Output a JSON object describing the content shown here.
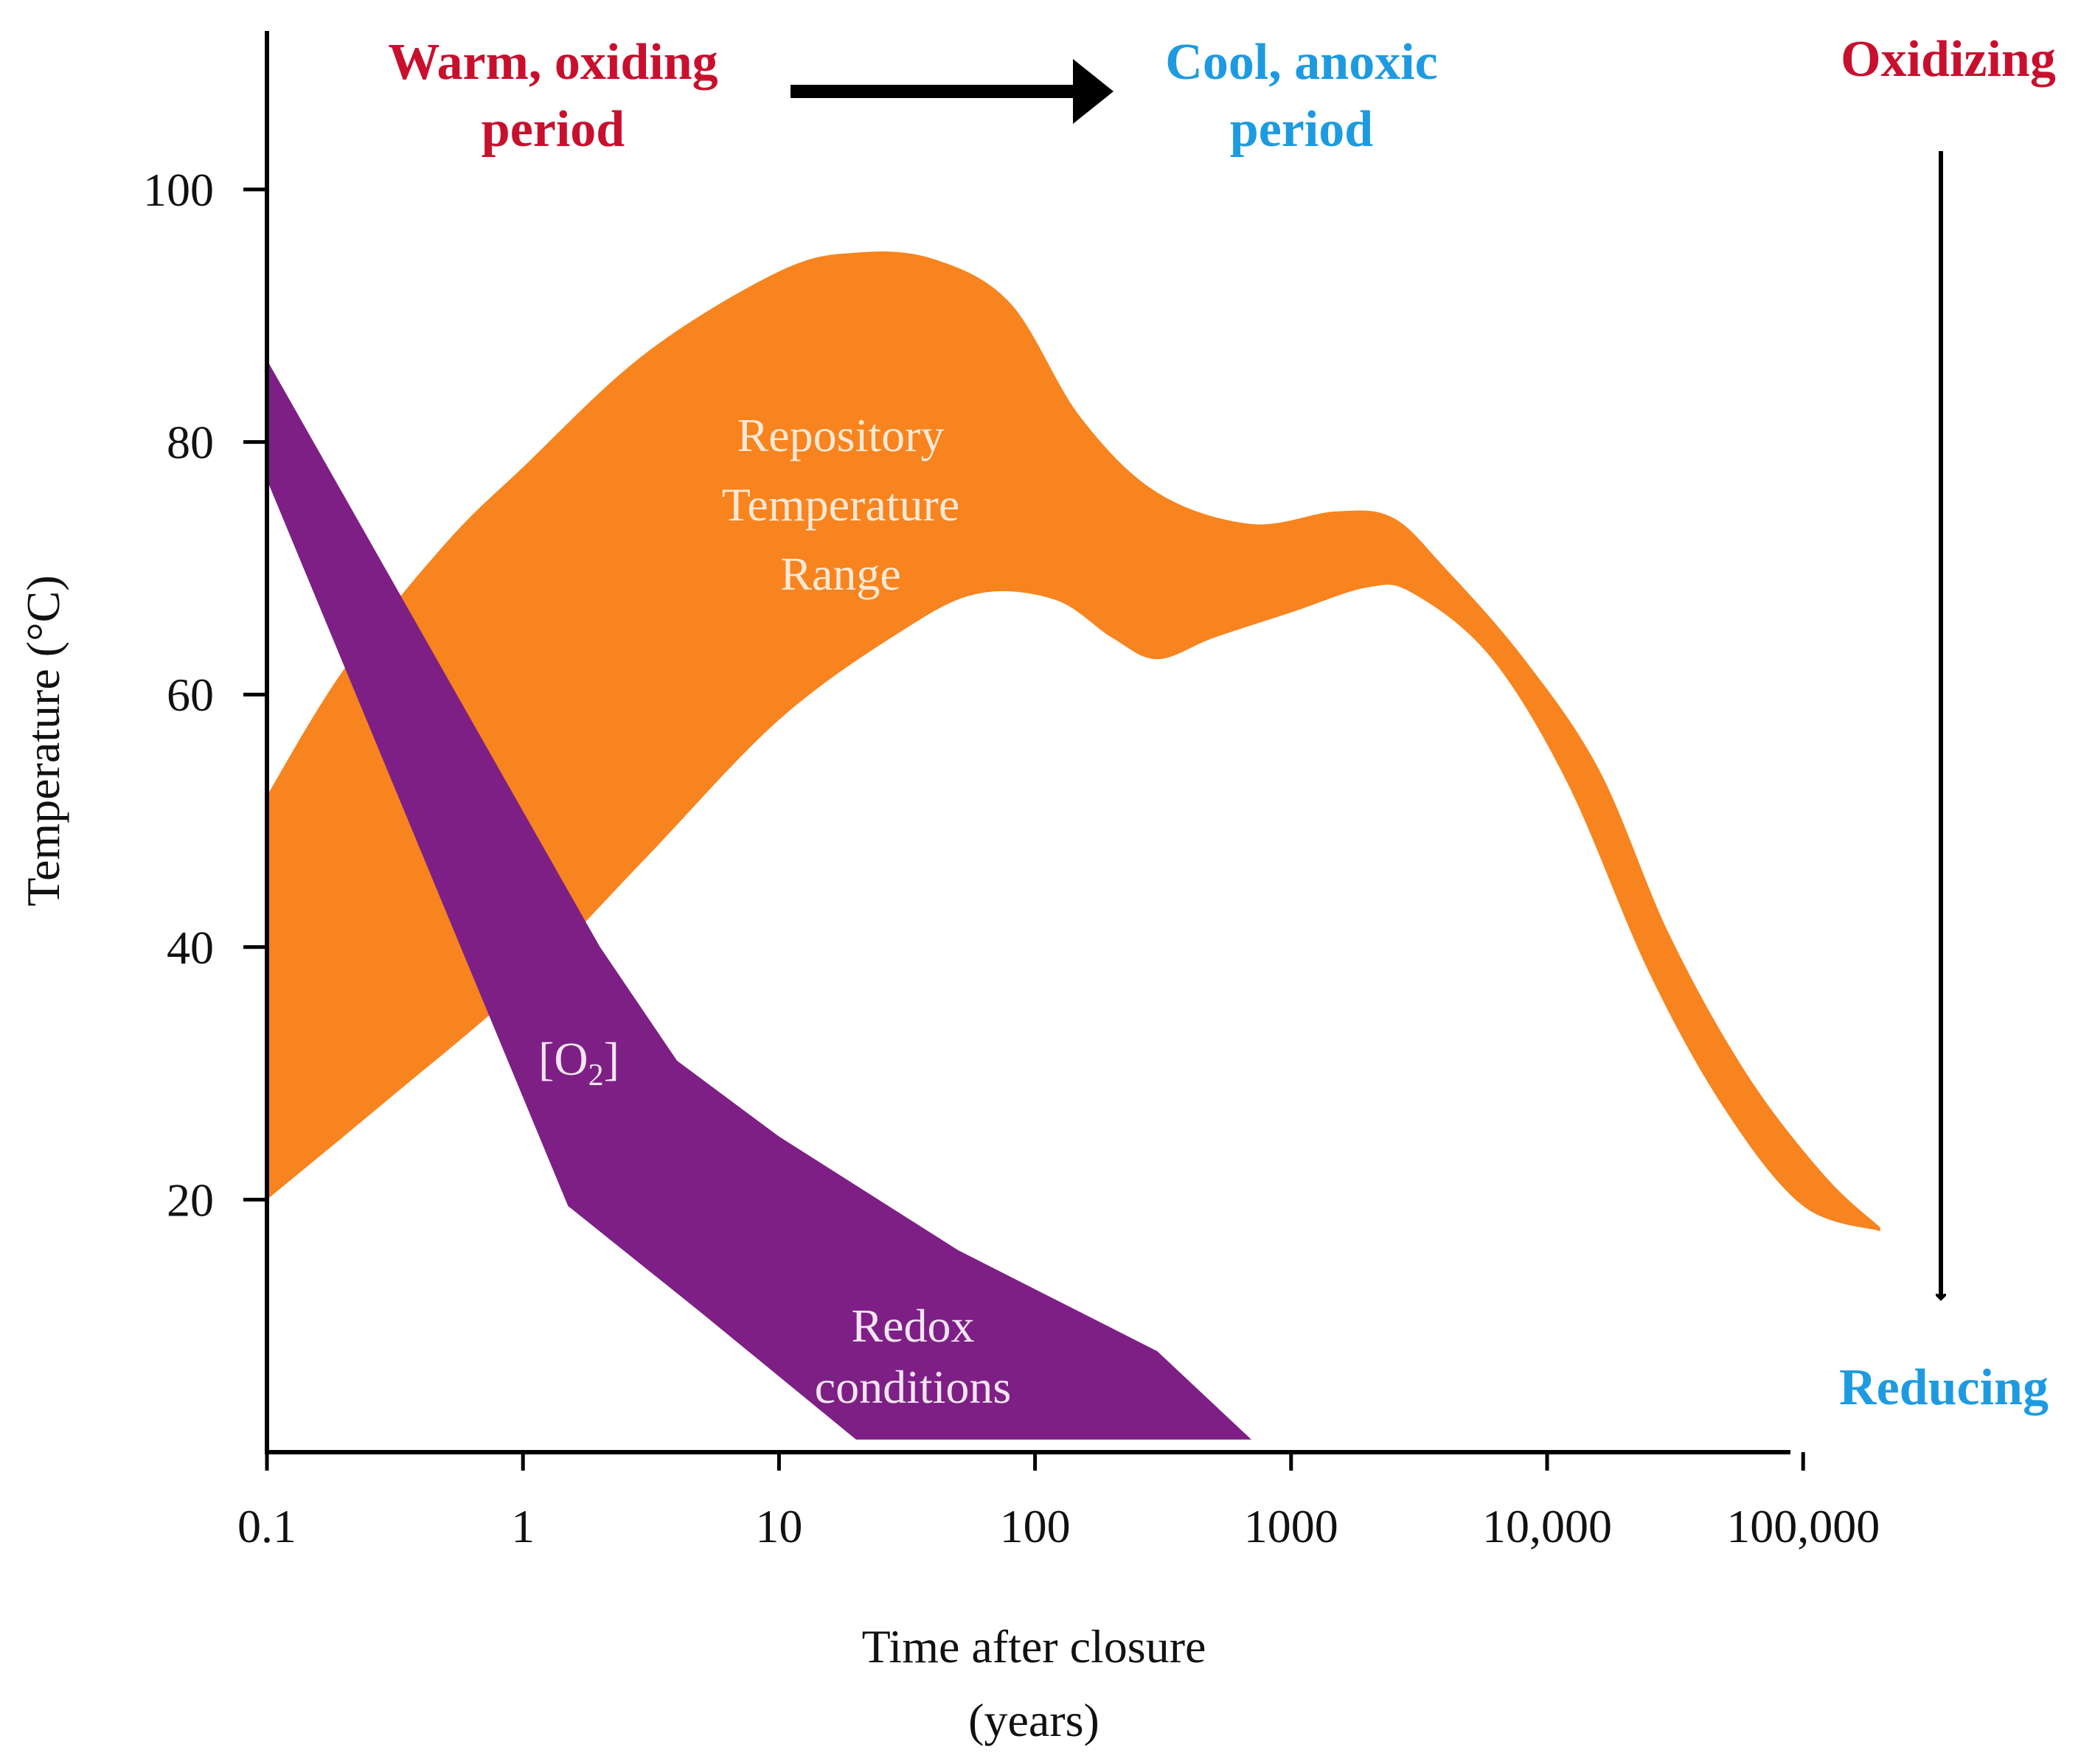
{
  "chart_data": {
    "type": "area",
    "xscale": "log",
    "xlim": [
      0.1,
      100000
    ],
    "ylim": [
      0,
      112
    ],
    "xlabel": [
      "Time after closure",
      "(years)"
    ],
    "ylabel": "Temperature (°C)",
    "x_ticks": [
      {
        "value": 0.1,
        "label": "0.1"
      },
      {
        "value": 1,
        "label": "1"
      },
      {
        "value": 10,
        "label": "10"
      },
      {
        "value": 100,
        "label": "100"
      },
      {
        "value": 1000,
        "label": "1000"
      },
      {
        "value": 10000,
        "label": "10,000"
      },
      {
        "value": 100000,
        "label": "100,000"
      }
    ],
    "y_ticks": [
      {
        "value": 20,
        "label": "20"
      },
      {
        "value": 40,
        "label": "40"
      },
      {
        "value": 60,
        "label": "60"
      },
      {
        "value": 80,
        "label": "80"
      },
      {
        "value": 100,
        "label": "100"
      }
    ],
    "series": [
      {
        "label_lines": [
          "Repository",
          "Temperature",
          "Range"
        ],
        "color": "#f7841f",
        "upper": [
          [
            0.1,
            52
          ],
          [
            0.2,
            62
          ],
          [
            0.5,
            72
          ],
          [
            1,
            78
          ],
          [
            3,
            87
          ],
          [
            10,
            93.5
          ],
          [
            20,
            95
          ],
          [
            40,
            94.5
          ],
          [
            80,
            91
          ],
          [
            150,
            82
          ],
          [
            300,
            76
          ],
          [
            700,
            73.5
          ],
          [
            1500,
            74.5
          ],
          [
            2500,
            74
          ],
          [
            4000,
            70
          ],
          [
            8000,
            63
          ],
          [
            16000,
            54
          ],
          [
            30000,
            41
          ],
          [
            60000,
            30
          ],
          [
            120000,
            22
          ],
          [
            200000,
            17.8
          ]
        ],
        "lower": [
          [
            0.1,
            20
          ],
          [
            0.3,
            28
          ],
          [
            1,
            37
          ],
          [
            3,
            47
          ],
          [
            10,
            58
          ],
          [
            30,
            65
          ],
          [
            60,
            68
          ],
          [
            120,
            67.5
          ],
          [
            200,
            64.5
          ],
          [
            300,
            62.8
          ],
          [
            500,
            64.5
          ],
          [
            1000,
            66.5
          ],
          [
            2000,
            68.5
          ],
          [
            3000,
            68
          ],
          [
            6000,
            63
          ],
          [
            12000,
            53
          ],
          [
            25000,
            38
          ],
          [
            50000,
            27
          ],
          [
            100000,
            19.5
          ],
          [
            200000,
            17.5
          ]
        ]
      },
      {
        "label": "[O2]",
        "label_lines": [
          "Redox",
          "conditions"
        ],
        "color": "#7e1f86",
        "upper": [
          [
            0.1,
            86.5
          ],
          [
            2,
            40
          ],
          [
            4,
            31
          ],
          [
            10,
            25
          ],
          [
            50,
            16
          ],
          [
            300,
            8
          ],
          [
            700,
            1
          ]
        ],
        "lower": [
          [
            0.1,
            77
          ],
          [
            1.5,
            19.5
          ],
          [
            5,
            11
          ],
          [
            20,
            1
          ]
        ]
      }
    ],
    "header": {
      "left_lines": [
        "Warm, oxiding",
        "period"
      ],
      "middle_lines": [
        "Cool, anoxic",
        "period"
      ],
      "right_top": "Oxidizing",
      "right_bottom": "Reducing"
    },
    "colors": {
      "warm": "#c8102e",
      "cool": "#1e9be0",
      "orange": "#f7841f",
      "purple": "#7e1f86",
      "axis": "#000000"
    }
  }
}
